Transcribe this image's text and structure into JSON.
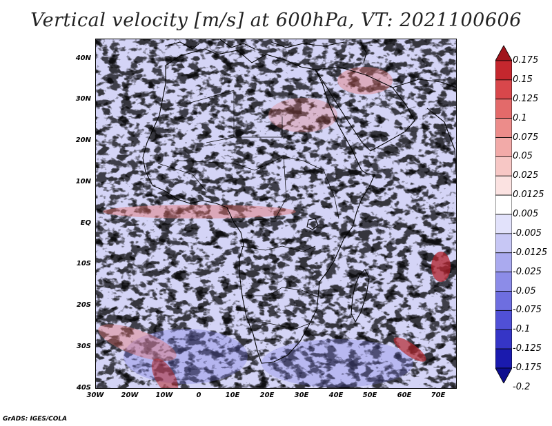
{
  "title": "Vertical velocity [m/s] at 600hPa, VT: 2021100606",
  "footer": "GrADS: IGES/COLA",
  "axes": {
    "lat_ticks": [
      "40N",
      "30N",
      "20N",
      "10N",
      "EQ",
      "10S",
      "20S",
      "30S",
      "40S"
    ],
    "lon_ticks": [
      "30W",
      "20W",
      "10W",
      "0",
      "10E",
      "20E",
      "30E",
      "40E",
      "50E",
      "60E",
      "70E"
    ]
  },
  "colorbar": {
    "labels": [
      "0.175",
      "0.15",
      "0.125",
      "0.1",
      "0.075",
      "0.05",
      "0.025",
      "0.0125",
      "0.005",
      "-0.005",
      "-0.0125",
      "-0.025",
      "-0.05",
      "-0.075",
      "-0.1",
      "-0.125",
      "-0.175",
      "-0.2"
    ],
    "colors": [
      "#a1141c",
      "#c4272e",
      "#d8474b",
      "#e36a6a",
      "#ec8c8a",
      "#f2aaa8",
      "#f7c7c5",
      "#fbe2e1",
      "#ffffff",
      "#e2e2fb",
      "#c7c7f5",
      "#aaaaef",
      "#8c8ce8",
      "#6e6ee0",
      "#5050d6",
      "#3535c6",
      "#1a1aae",
      "#0d0d8e"
    ]
  }
}
